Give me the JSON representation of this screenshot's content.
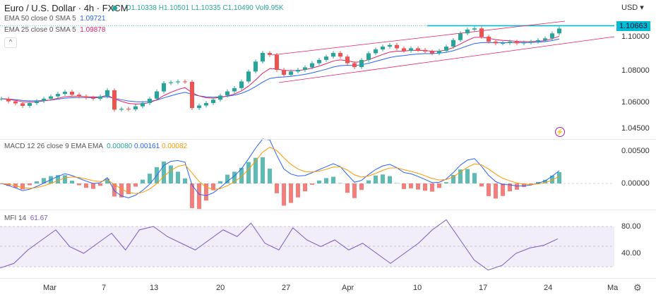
{
  "header": {
    "title": "Euro / U.S. Dollar · 4h · FXCM",
    "open": "O1.10338",
    "high": "H1.10501",
    "low": "L1.10335",
    "close": "C1.10490",
    "volume": "Vol9.95K"
  },
  "indicators": {
    "ema50_label": "EMA 50 close 0 SMA 5",
    "ema50_value": "1.09721",
    "ema25_label": "EMA 25 close 0 SMA 5",
    "ema25_value": "1.09878"
  },
  "currency": "USD ▾",
  "price_axis": {
    "current": "1.10663",
    "ticks": [
      "1.10000",
      "1.08000",
      "1.06000",
      "1.04500"
    ]
  },
  "macd": {
    "label": "MACD 12 26 close 9 EMA EMA",
    "v1": "0.00080",
    "v2": "0.00161",
    "v3": "0.00082",
    "ticks": [
      "0.00500",
      "0.00000"
    ]
  },
  "mfi": {
    "label": "MFI 14",
    "value": "61.67",
    "ticks": [
      "80.00",
      "40.00"
    ]
  },
  "x_axis": [
    "Mar",
    "7",
    "13",
    "20",
    "27",
    "Apr",
    "10",
    "17",
    "24",
    "Ma"
  ],
  "colors": {
    "up": "#26a69a",
    "down": "#ef5350",
    "ema50": "#2962ff",
    "ema25": "#e91e63",
    "level": "#00bcd4",
    "mfi": "#7e57c2"
  },
  "chart_data": {
    "type": "candlestick",
    "closes": [
      1.0626,
      1.061,
      1.0598,
      1.0583,
      1.06,
      1.0612,
      1.0626,
      1.064,
      1.0655,
      1.0668,
      1.065,
      1.064,
      1.0632,
      1.0626,
      1.064,
      1.0677,
      1.056,
      1.0565,
      1.0562,
      1.058,
      1.06,
      1.0626,
      1.067,
      1.072,
      1.0725,
      1.073,
      1.0728,
      1.057,
      1.0585,
      1.06,
      1.062,
      1.0645,
      1.067,
      1.069,
      1.073,
      1.079,
      1.085,
      1.0902,
      1.089,
      1.08,
      1.077,
      1.079,
      1.08,
      1.0815,
      1.084,
      1.086,
      1.088,
      1.0902,
      1.088,
      1.084,
      1.0817,
      1.086,
      1.09,
      1.0923,
      1.094,
      1.095,
      1.093,
      1.0915,
      1.093,
      1.092,
      1.0911,
      1.09,
      1.0915,
      1.094,
      1.098,
      1.102,
      1.1043,
      1.105,
      1.1,
      1.097,
      1.096,
      1.0962,
      1.097,
      1.096,
      1.0965,
      1.097,
      1.0979,
      1.099,
      1.102,
      1.1049
    ],
    "mfi_values": [
      18,
      25,
      45,
      60,
      75,
      50,
      40,
      55,
      70,
      45,
      75,
      80,
      65,
      55,
      45,
      60,
      75,
      65,
      85,
      55,
      45,
      78,
      60,
      50,
      60,
      45,
      55,
      40,
      25,
      40,
      55,
      75,
      90,
      60,
      30,
      15,
      22,
      40,
      48,
      52,
      61.67
    ],
    "level": 1.10663,
    "ylim": [
      1.045,
      1.11
    ]
  }
}
